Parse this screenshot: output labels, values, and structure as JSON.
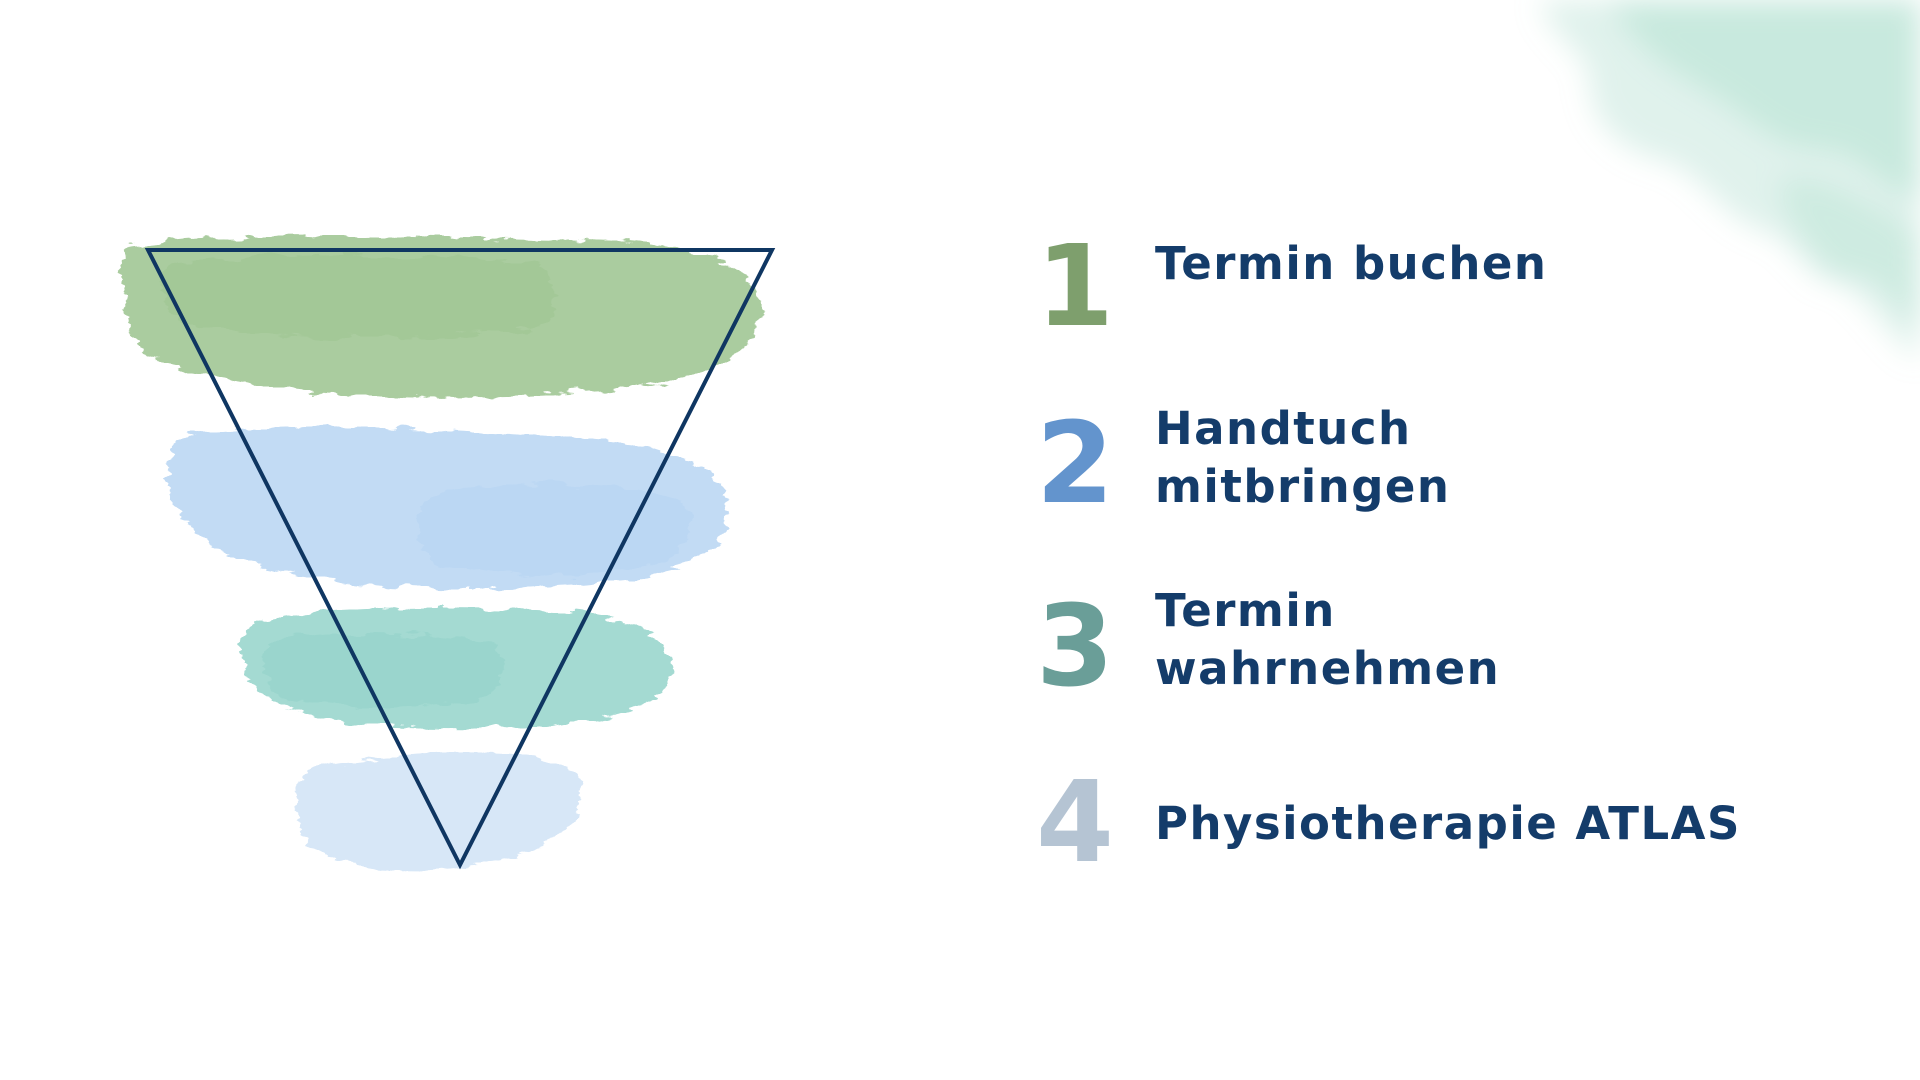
{
  "colors": {
    "text": "#143c6a",
    "outline": "#0f3662",
    "green": "#9cc48f",
    "blue": "#b4d3f2",
    "teal": "#8ed1c7",
    "pale_blue": "#d3e5f7",
    "corner_wash": "#a5dbc9"
  },
  "steps": [
    {
      "number": "1",
      "label": "Termin buchen",
      "color": "#7e9f6d"
    },
    {
      "number": "2",
      "label": "Handtuch\nmitbringen",
      "color": "#6394cd"
    },
    {
      "number": "3",
      "label": "Termin\nwahrnehmen",
      "color": "#6a9e98"
    },
    {
      "number": "4",
      "label": "Physiotherapie ATLAS",
      "color": "#b5c4d3"
    }
  ]
}
